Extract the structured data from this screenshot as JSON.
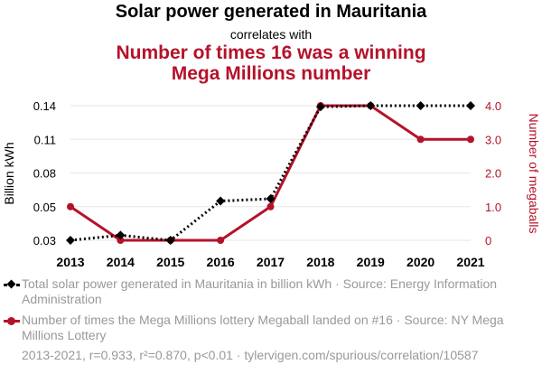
{
  "title": "Solar power generated in Mauritania",
  "subtitle": "correlates with",
  "title2": "Number of times 16 was a winning Mega Millions number",
  "colors": {
    "series1": "#000000",
    "series2": "#b5122a",
    "grid": "#e6e6e6",
    "muted": "#999999"
  },
  "chart_data": {
    "type": "line",
    "x": [
      2013,
      2014,
      2015,
      2016,
      2017,
      2018,
      2019,
      2020,
      2021
    ],
    "xticks": [
      "2013",
      "2014",
      "2015",
      "2016",
      "2017",
      "2018",
      "2019",
      "2020",
      "2021"
    ],
    "y_left": {
      "label": "Billion kWh",
      "ticks": [
        "0.03",
        "0.05",
        "0.08",
        "0.11",
        "0.14"
      ],
      "tick_values": [
        0.03,
        0.05,
        0.08,
        0.11,
        0.14
      ],
      "range": [
        0.03,
        0.14
      ]
    },
    "y_right": {
      "label": "Number of megaballs",
      "ticks": [
        "0",
        "1.0",
        "2.0",
        "3.0",
        "4.0"
      ],
      "tick_values": [
        0,
        1,
        2,
        3,
        4
      ],
      "range": [
        0,
        4
      ]
    },
    "series": [
      {
        "name": "Total solar power generated in Mauritania in billion kWh · Source: Energy Information Administration",
        "axis": "left",
        "style": "dotted",
        "color": "#000000",
        "values": [
          0.03,
          0.033,
          0.03,
          0.055,
          0.057,
          0.139,
          0.14,
          0.14,
          0.14
        ]
      },
      {
        "name": "Number of times the Mega Millions lottery Megaball landed on #16 · Source: NY Mega Millions Lottery",
        "axis": "right",
        "style": "solid",
        "color": "#b5122a",
        "values": [
          1,
          0,
          0,
          0,
          1,
          4,
          4,
          3,
          3
        ]
      }
    ]
  },
  "footer": "2013-2021, r=0.933, r²=0.870, p<0.01 · tylervigen.com/spurious/correlation/10587"
}
